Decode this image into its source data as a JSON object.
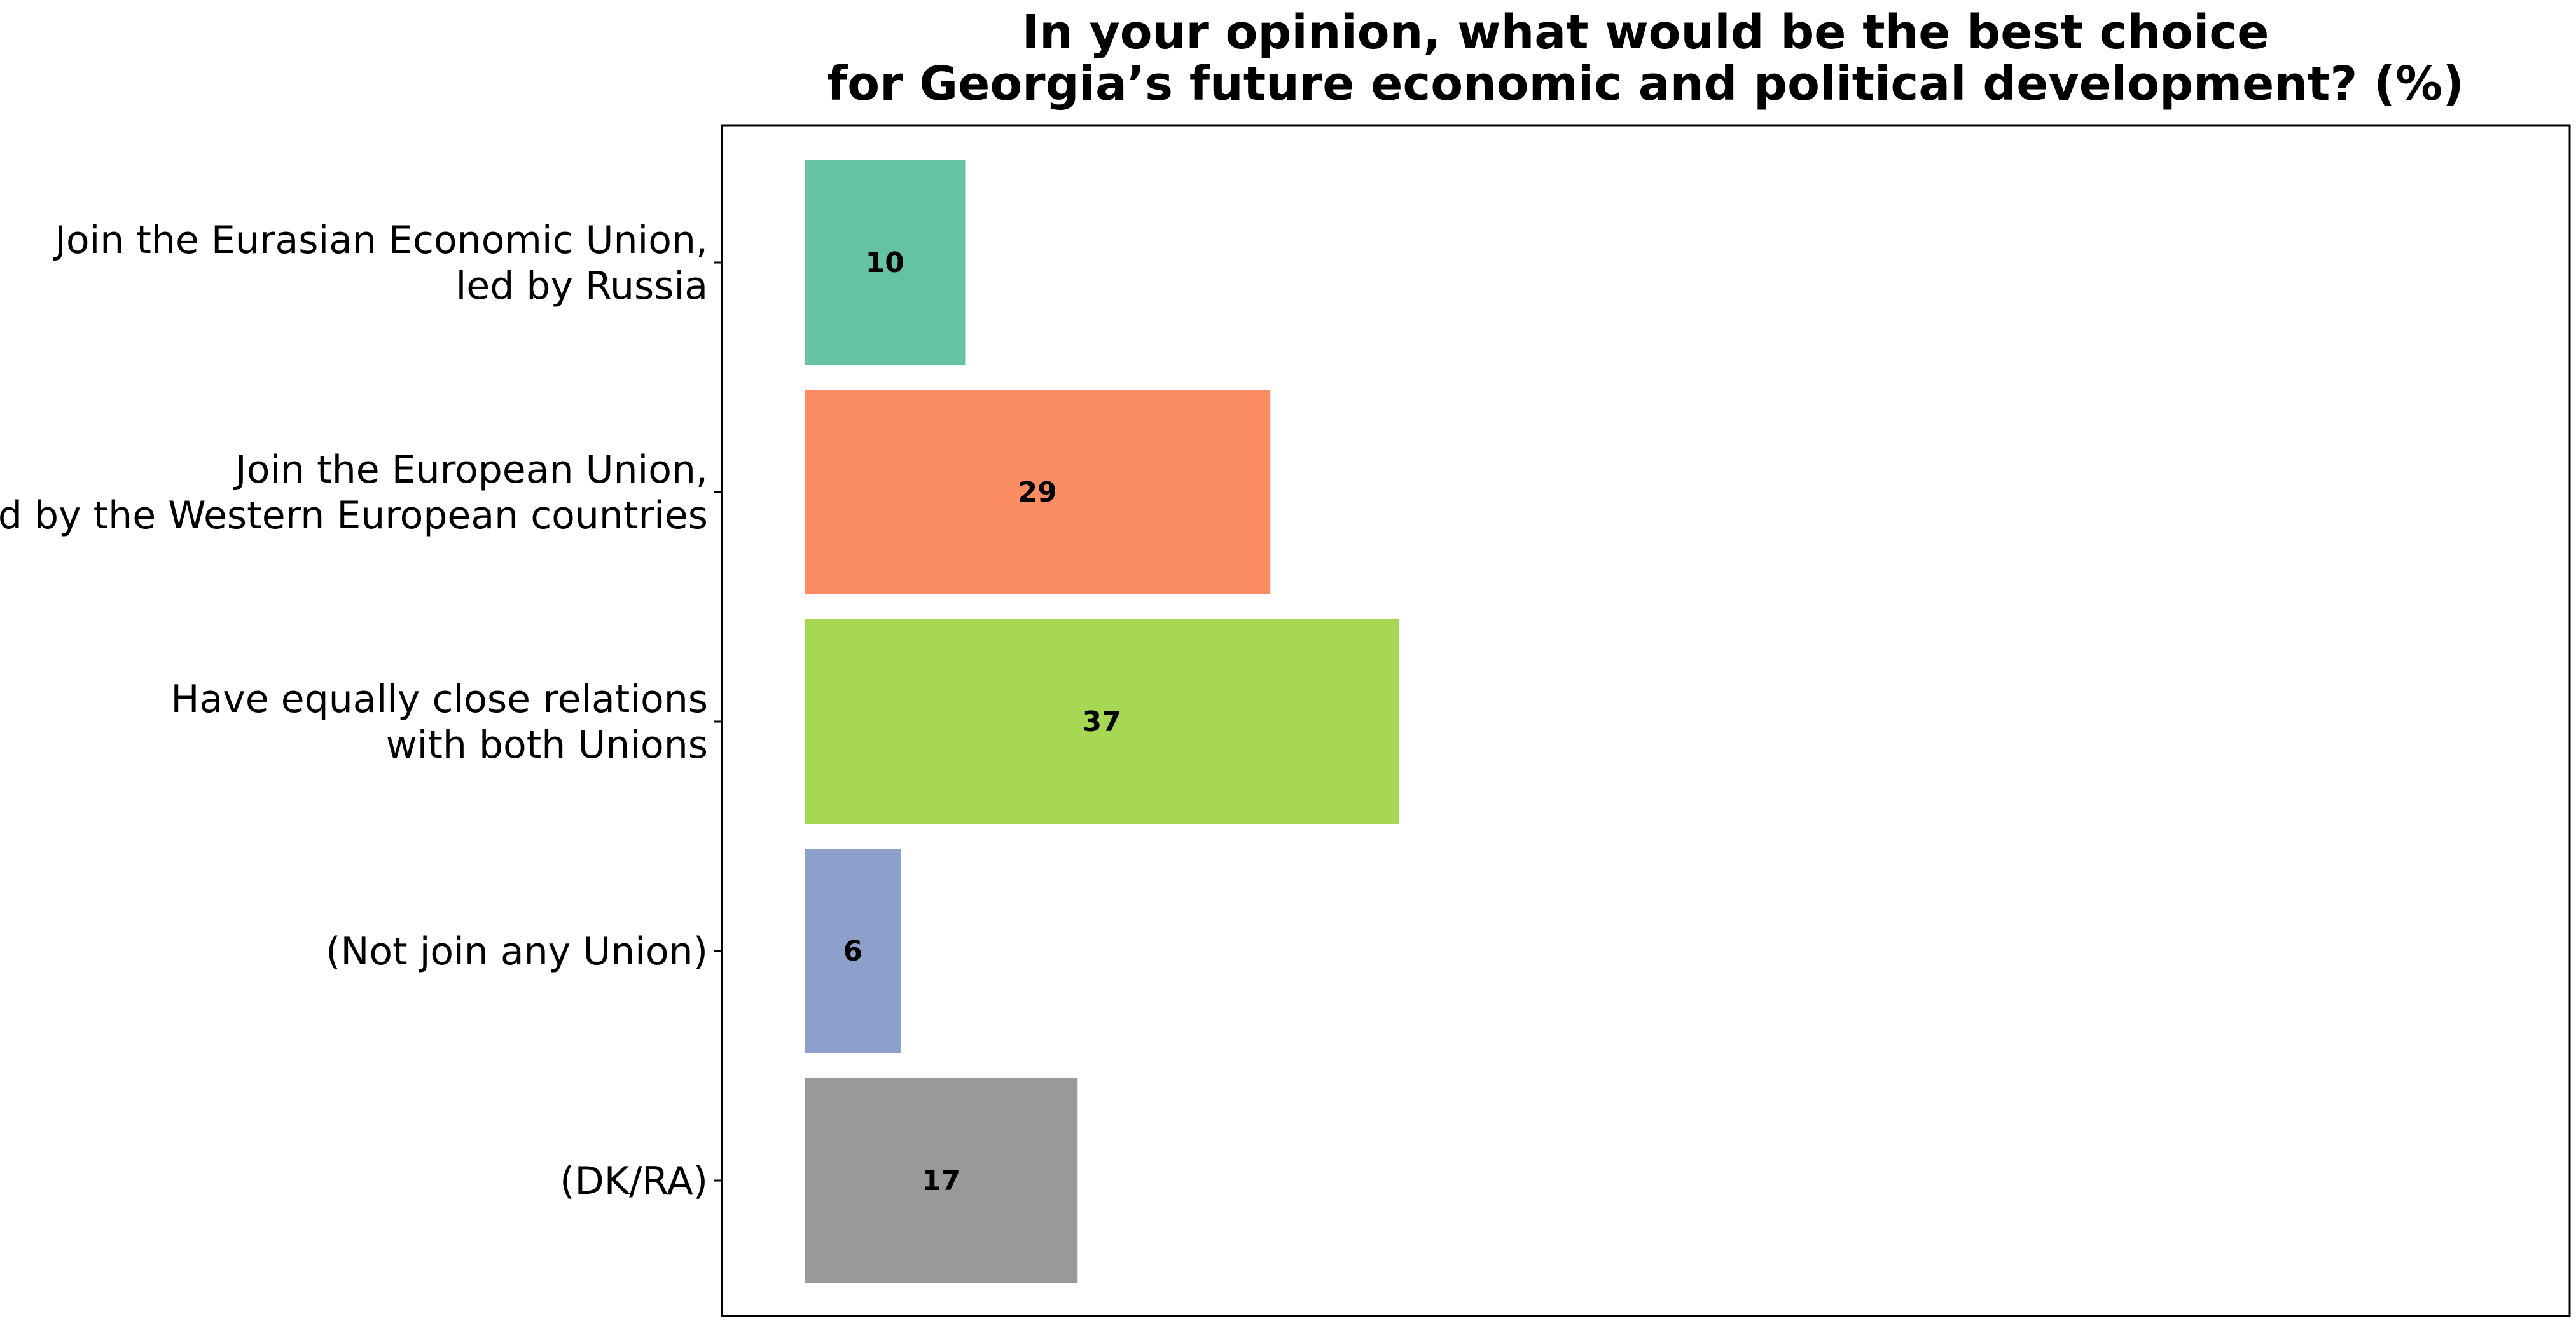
{
  "chart_data": {
    "type": "bar",
    "orientation": "horizontal",
    "title": [
      "In your opinion, what would be the best choice",
      "for Georgia’s future economic and political development? (%)"
    ],
    "categories": [
      [
        "Join the Eurasian Economic Union,",
        "led by Russia"
      ],
      [
        "Join the European Union,",
        "led by the Western European countries"
      ],
      [
        "Have equally close relations",
        "with both Unions"
      ],
      [
        "(Not join any Union)"
      ],
      [
        "(DK/RA)"
      ]
    ],
    "values": [
      10,
      29,
      37,
      6,
      17
    ],
    "value_labels": [
      "10",
      "29",
      "37",
      "6",
      "17"
    ],
    "colors": [
      "#66c2a5",
      "#fc8d62",
      "#a6d854",
      "#8da0cb",
      "#999999"
    ],
    "xlim": [
      0,
      105
    ],
    "xlabel": "",
    "ylabel": "",
    "grid": false,
    "legend": "none"
  }
}
